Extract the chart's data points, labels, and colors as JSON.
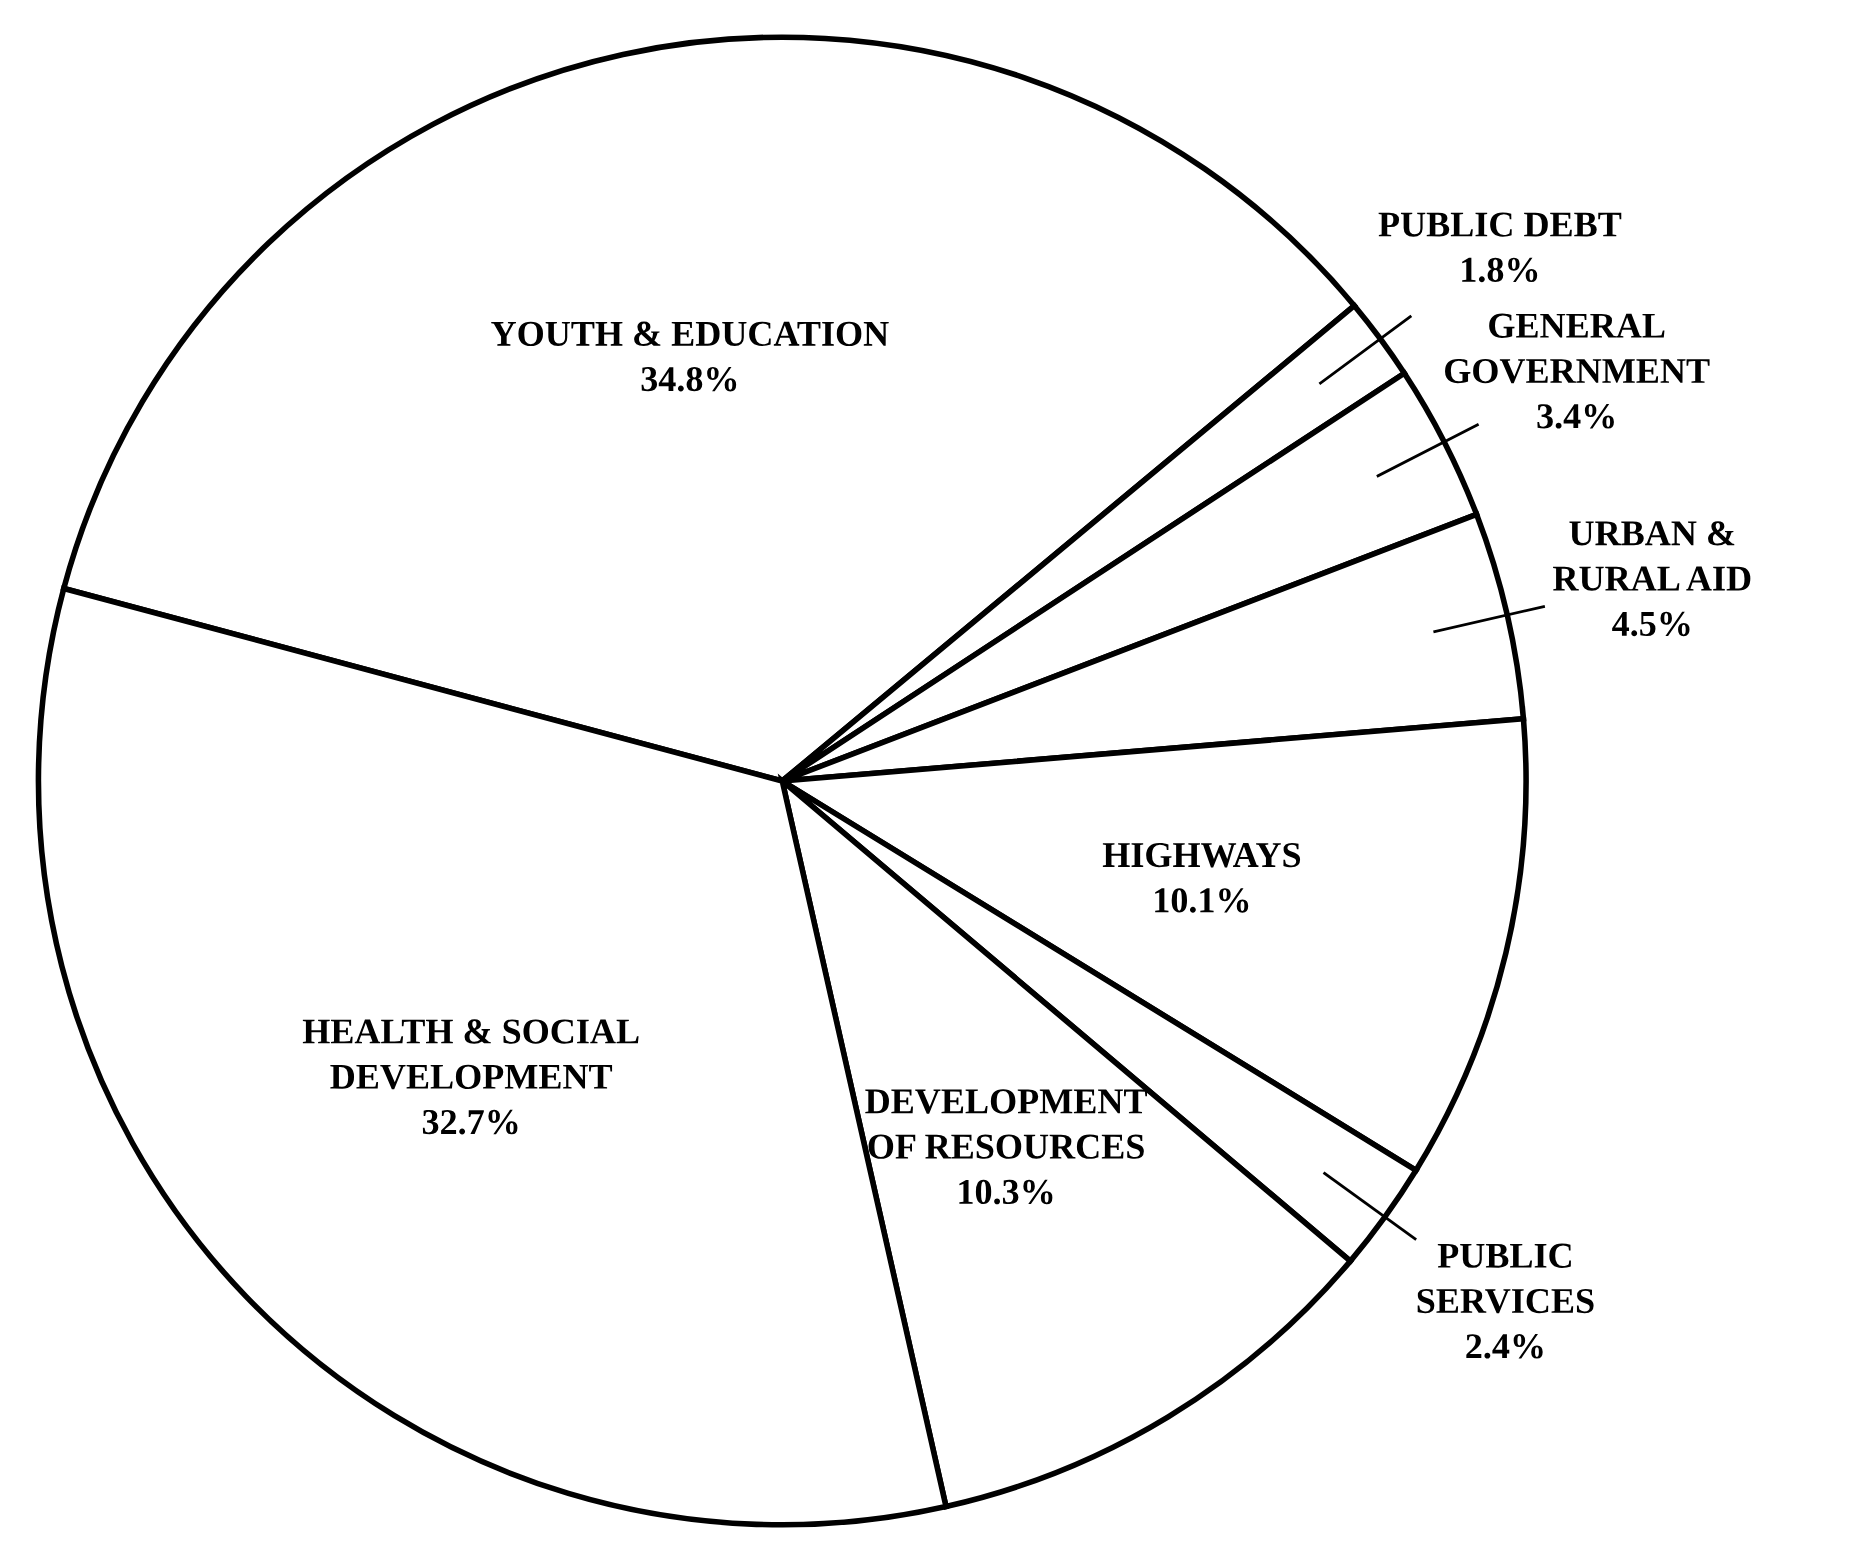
{
  "chart_data": {
    "type": "pie",
    "categories": [
      "YOUTH & EDUCATION",
      "PUBLIC DEBT",
      "GENERAL\nGOVERNMENT",
      "URBAN &\nRURAL AID",
      "HIGHWAYS",
      "PUBLIC\nSERVICES",
      "DEVELOPMENT\nOF RESOURCES",
      "HEALTH & SOCIAL\nDEVELOPMENT"
    ],
    "values": [
      34.8,
      1.8,
      3.4,
      4.5,
      10.1,
      2.4,
      10.3,
      32.7
    ],
    "value_labels": [
      "34.8%",
      "1.8%",
      "3.4%",
      "4.5%",
      "10.1%",
      "2.4%",
      "10.3%",
      "32.7%"
    ],
    "colors": [
      "#ffffff",
      "#ffffff",
      "#ffffff",
      "#ffffff",
      "#ffffff",
      "#ffffff",
      "#ffffff",
      "#ffffff"
    ],
    "legend": false
  }
}
